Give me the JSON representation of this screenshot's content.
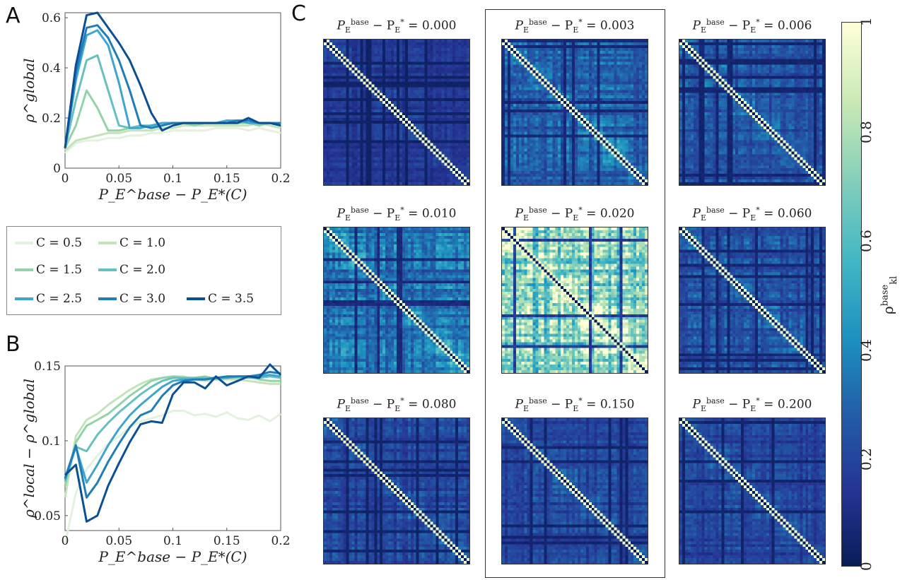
{
  "panels": {
    "a": "A",
    "b": "B",
    "c": "C"
  },
  "palette": [
    "#e3f1de",
    "#c3e3b8",
    "#93d3a8",
    "#67c0c0",
    "#3fa5cf",
    "#1f7db7",
    "#0b4f94"
  ],
  "chart_data": [
    {
      "type": "line",
      "ylabel": "ρ^global",
      "xlabel": "P_E^base − P_E*(C)",
      "xlim": [
        0,
        0.2
      ],
      "ylim": [
        0,
        0.62
      ],
      "xticks": [
        "0",
        "0.05",
        "0.1",
        "0.15",
        "0.2"
      ],
      "yticks": [
        "0",
        "0.2",
        "0.4",
        "0.6"
      ],
      "xtick_values": [
        0,
        0.05,
        0.1,
        0.15,
        0.2
      ],
      "ytick_values": [
        0,
        0.2,
        0.4,
        0.6
      ],
      "grid": false,
      "x": [
        0,
        0.01,
        0.02,
        0.03,
        0.04,
        0.05,
        0.06,
        0.07,
        0.08,
        0.09,
        0.1,
        0.11,
        0.12,
        0.13,
        0.14,
        0.15,
        0.16,
        0.17,
        0.18,
        0.19,
        0.2
      ],
      "series": [
        {
          "name": "C = 0.5",
          "values": [
            0.06,
            0.1,
            0.11,
            0.11,
            0.12,
            0.12,
            0.13,
            0.13,
            0.14,
            0.14,
            0.15,
            0.15,
            0.15,
            0.15,
            0.16,
            0.16,
            0.16,
            0.15,
            0.16,
            0.15,
            0.14
          ]
        },
        {
          "name": "C = 1.0",
          "values": [
            0.07,
            0.11,
            0.12,
            0.13,
            0.14,
            0.14,
            0.15,
            0.15,
            0.15,
            0.16,
            0.16,
            0.17,
            0.17,
            0.17,
            0.17,
            0.17,
            0.17,
            0.17,
            0.18,
            0.17,
            0.16
          ]
        },
        {
          "name": "C = 1.5",
          "values": [
            0.08,
            0.17,
            0.31,
            0.24,
            0.15,
            0.15,
            0.16,
            0.16,
            0.17,
            0.17,
            0.18,
            0.18,
            0.17,
            0.18,
            0.18,
            0.18,
            0.18,
            0.18,
            0.17,
            0.18,
            0.17
          ]
        },
        {
          "name": "C = 2.0",
          "values": [
            0.08,
            0.27,
            0.43,
            0.45,
            0.31,
            0.17,
            0.16,
            0.17,
            0.17,
            0.18,
            0.18,
            0.18,
            0.18,
            0.18,
            0.18,
            0.18,
            0.18,
            0.19,
            0.18,
            0.18,
            0.17
          ]
        },
        {
          "name": "C = 2.5",
          "values": [
            0.08,
            0.35,
            0.53,
            0.55,
            0.49,
            0.34,
            0.16,
            0.16,
            0.17,
            0.18,
            0.18,
            0.18,
            0.18,
            0.18,
            0.18,
            0.19,
            0.19,
            0.18,
            0.18,
            0.18,
            0.17
          ]
        },
        {
          "name": "C = 3.0",
          "values": [
            0.08,
            0.38,
            0.56,
            0.57,
            0.52,
            0.43,
            0.31,
            0.17,
            0.16,
            0.17,
            0.18,
            0.18,
            0.18,
            0.18,
            0.18,
            0.18,
            0.19,
            0.19,
            0.18,
            0.18,
            0.18
          ]
        },
        {
          "name": "C = 3.5",
          "values": [
            0.08,
            0.41,
            0.61,
            0.62,
            0.56,
            0.5,
            0.43,
            0.33,
            0.22,
            0.15,
            0.17,
            0.18,
            0.18,
            0.18,
            0.18,
            0.18,
            0.18,
            0.2,
            0.18,
            0.18,
            0.17
          ]
        }
      ]
    },
    {
      "type": "line",
      "ylabel": "ρ^local − ρ^global",
      "xlabel": "P_E^base − P_E*(C)",
      "xlim": [
        0,
        0.2
      ],
      "ylim": [
        0.04,
        0.15
      ],
      "xticks": [
        "0",
        "0.05",
        "0.1",
        "0.15",
        "0.2"
      ],
      "yticks": [
        "0.05",
        "0.1",
        "0.15"
      ],
      "xtick_values": [
        0,
        0.05,
        0.1,
        0.15,
        0.2
      ],
      "ytick_values": [
        0.05,
        0.1,
        0.15
      ],
      "grid": false,
      "x": [
        0,
        0.01,
        0.02,
        0.03,
        0.04,
        0.05,
        0.06,
        0.07,
        0.08,
        0.09,
        0.1,
        0.11,
        0.12,
        0.13,
        0.14,
        0.15,
        0.16,
        0.17,
        0.18,
        0.19,
        0.2
      ],
      "series": [
        {
          "name": "C = 0.5",
          "values": [
            0.031,
            0.065,
            0.081,
            0.09,
            0.098,
            0.103,
            0.109,
            0.113,
            0.115,
            0.117,
            0.12,
            0.12,
            0.117,
            0.118,
            0.116,
            0.119,
            0.115,
            0.114,
            0.117,
            0.113,
            0.118
          ]
        },
        {
          "name": "C = 1.0",
          "values": [
            0.062,
            0.103,
            0.114,
            0.118,
            0.124,
            0.129,
            0.134,
            0.138,
            0.141,
            0.142,
            0.143,
            0.143,
            0.141,
            0.14,
            0.141,
            0.141,
            0.141,
            0.14,
            0.139,
            0.138,
            0.138
          ]
        },
        {
          "name": "C = 1.5",
          "values": [
            0.07,
            0.099,
            0.11,
            0.114,
            0.118,
            0.124,
            0.13,
            0.135,
            0.14,
            0.142,
            0.143,
            0.142,
            0.142,
            0.143,
            0.141,
            0.142,
            0.142,
            0.143,
            0.141,
            0.14,
            0.14
          ]
        },
        {
          "name": "C = 2.0",
          "values": [
            0.073,
            0.096,
            0.093,
            0.104,
            0.112,
            0.119,
            0.125,
            0.131,
            0.136,
            0.14,
            0.142,
            0.142,
            0.142,
            0.142,
            0.142,
            0.142,
            0.143,
            0.142,
            0.142,
            0.143,
            0.142
          ]
        },
        {
          "name": "C = 2.5",
          "values": [
            0.074,
            0.096,
            0.072,
            0.084,
            0.097,
            0.108,
            0.117,
            0.124,
            0.13,
            0.136,
            0.14,
            0.141,
            0.141,
            0.141,
            0.142,
            0.142,
            0.143,
            0.143,
            0.143,
            0.144,
            0.143
          ]
        },
        {
          "name": "C = 3.0",
          "values": [
            0.075,
            0.097,
            0.062,
            0.072,
            0.086,
            0.098,
            0.109,
            0.117,
            0.12,
            0.13,
            0.137,
            0.14,
            0.141,
            0.141,
            0.142,
            0.143,
            0.143,
            0.143,
            0.144,
            0.146,
            0.145
          ]
        },
        {
          "name": "C = 3.5",
          "values": [
            0.077,
            0.084,
            0.046,
            0.05,
            0.07,
            0.085,
            0.099,
            0.111,
            0.113,
            0.112,
            0.131,
            0.139,
            0.139,
            0.135,
            0.143,
            0.137,
            0.14,
            0.143,
            0.142,
            0.151,
            0.144
          ]
        }
      ]
    },
    {
      "type": "heatmap",
      "titles": [
        "0.000",
        "0.003",
        "0.006",
        "0.010",
        "0.020",
        "0.060",
        "0.080",
        "0.150",
        "0.200"
      ],
      "title_prefix_base": "P",
      "title_prefix_rest": " − P",
      "sup_base": "base",
      "sub_e": "E",
      "sup_star": "*",
      "equals": " = ",
      "mean_levels": [
        0.16,
        0.32,
        0.26,
        0.38,
        0.8,
        0.28,
        0.22,
        0.22,
        0.22
      ],
      "highlighted_column": 1,
      "colorbar": {
        "ticks": [
          "0",
          "0.2",
          "0.4",
          "0.6",
          "0.8",
          "1"
        ],
        "tick_values": [
          0,
          0.2,
          0.4,
          0.6,
          0.8,
          1
        ],
        "label_base": "ρ",
        "label_sup": "base",
        "label_sub": "kl"
      }
    }
  ]
}
